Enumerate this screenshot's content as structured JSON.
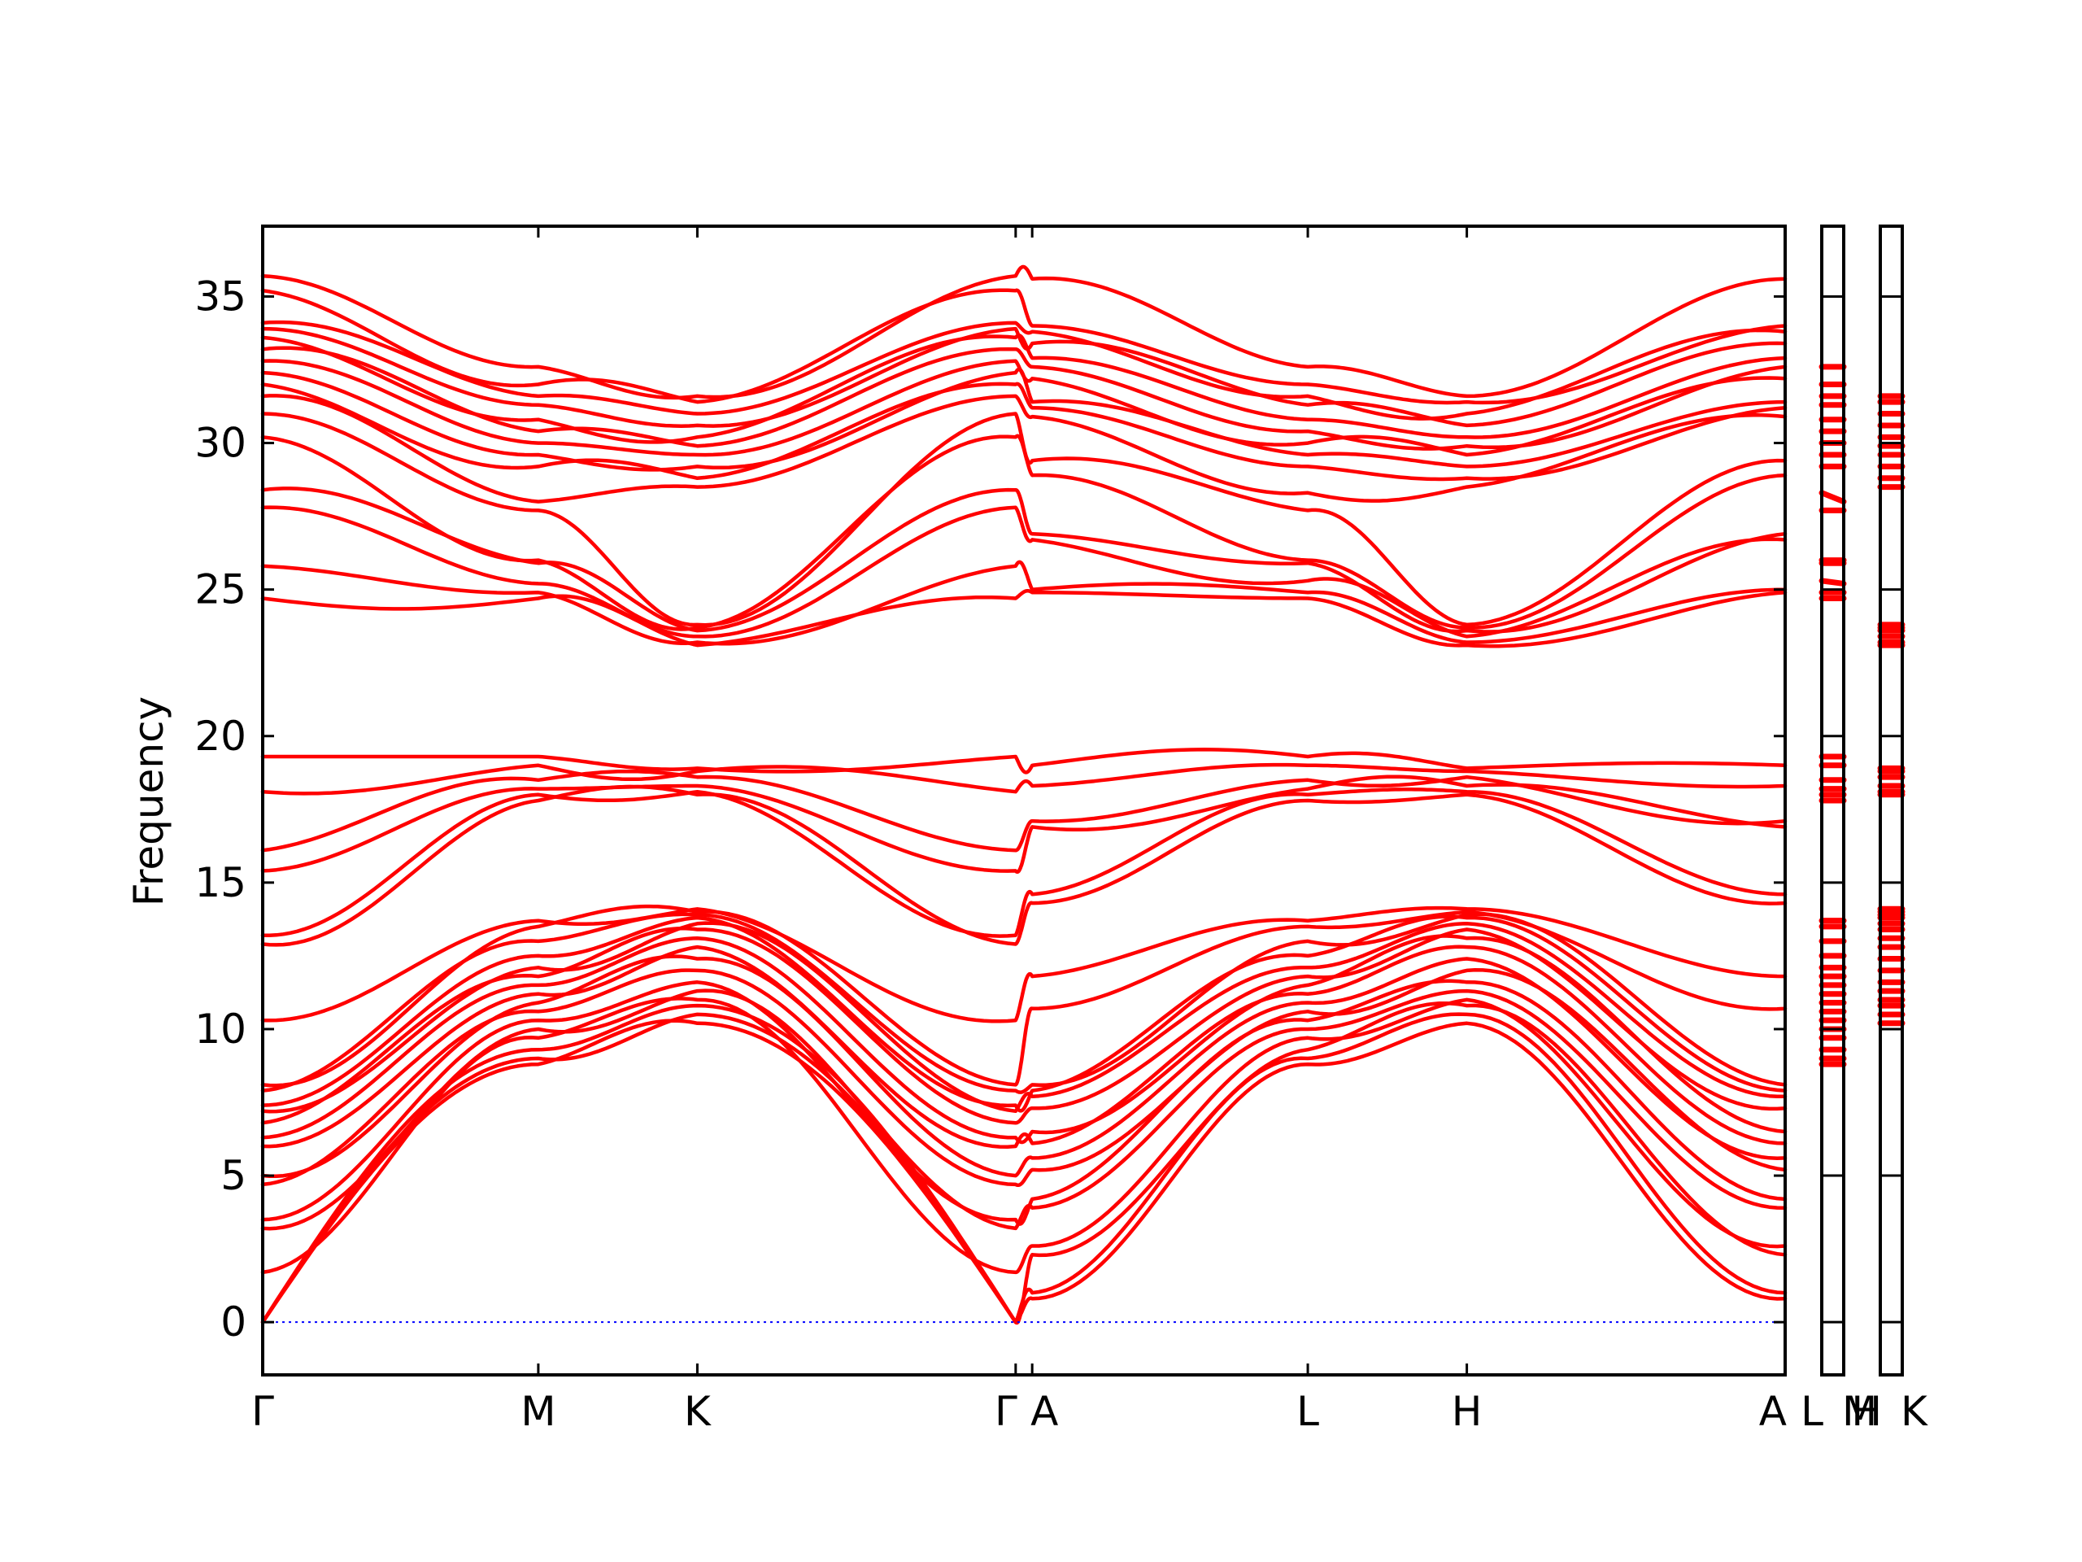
{
  "chart_data": {
    "type": "line",
    "title": "",
    "xlabel": "",
    "ylabel": "Frequency",
    "ylim": [
      -1.8,
      37.4
    ],
    "yticks": [
      0,
      5,
      10,
      15,
      20,
      25,
      30,
      35
    ],
    "grid": false,
    "legend": "none",
    "colors": {
      "bands": "#ff0000",
      "zero_line": "#0000ff",
      "axes": "#000000"
    },
    "path_segments": [
      {
        "from": "Γ",
        "to": "M",
        "length": 1.0
      },
      {
        "from": "M",
        "to": "K",
        "length": 0.577
      },
      {
        "from": "K",
        "to": "Γ",
        "length": 1.155
      },
      {
        "from": "Γ",
        "to": "A",
        "length": 0.06
      },
      {
        "from": "A",
        "to": "L",
        "length": 1.0
      },
      {
        "from": "L",
        "to": "H",
        "length": 0.577
      },
      {
        "from": "H",
        "to": "A",
        "length": 1.155
      },
      {
        "from": "L",
        "to": "M",
        "length": 0.06
      },
      {
        "from": "H",
        "to": "K",
        "length": 0.06
      }
    ],
    "x_tick_labels": [
      "Γ",
      "M",
      "K",
      "Γ",
      "A",
      "L",
      "H",
      "A",
      "L",
      "M",
      "H",
      "K"
    ],
    "high_point_freqs": {
      "Gamma": [
        24.7,
        25.8,
        27.8,
        28.4,
        30.2,
        31.0,
        31.6,
        32.0,
        32.4,
        32.8,
        33.2,
        33.6,
        33.9,
        34.1,
        35.2,
        35.7
      ],
      "M": [
        24.7,
        24.9,
        25.2,
        25.9,
        26.0,
        27.7,
        28.0,
        29.2,
        29.6,
        30.0,
        30.4,
        30.8,
        31.3,
        31.6,
        32.0,
        32.6
      ],
      "K": [
        23.1,
        23.2,
        23.4,
        23.6,
        23.7,
        23.8,
        28.5,
        28.8,
        29.2,
        29.6,
        29.9,
        30.2,
        30.6,
        31.0,
        31.4,
        31.6
      ],
      "A": [
        24.9,
        25.0,
        26.7,
        26.9,
        28.9,
        29.4,
        30.9,
        31.2,
        31.4,
        32.2,
        32.6,
        32.9,
        33.4,
        33.8,
        34.0,
        35.6
      ],
      "L": [
        24.7,
        24.9,
        25.3,
        25.9,
        26.0,
        27.7,
        28.3,
        29.2,
        29.6,
        30.0,
        30.4,
        30.8,
        31.3,
        31.6,
        32.0,
        32.6
      ],
      "H": [
        23.1,
        23.2,
        23.4,
        23.6,
        23.7,
        23.8,
        28.5,
        28.8,
        29.2,
        29.6,
        29.9,
        30.2,
        30.6,
        31.0,
        31.4,
        31.6
      ]
    },
    "mid_point_freqs": {
      "Gamma": [
        12.9,
        13.2,
        15.4,
        16.1,
        18.1,
        19.3
      ],
      "M": [
        17.8,
        18.0,
        18.2,
        18.5,
        19.0,
        19.3
      ],
      "K": [
        18.0,
        18.1,
        18.3,
        18.6,
        18.8,
        18.9
      ],
      "A": [
        14.3,
        14.6,
        16.9,
        17.1,
        18.3,
        19.0
      ],
      "L": [
        17.8,
        18.0,
        18.2,
        18.5,
        19.0,
        19.3
      ],
      "H": [
        18.0,
        18.1,
        18.3,
        18.6,
        18.8,
        18.9
      ]
    },
    "low_point_freqs": {
      "Gamma": [
        0.0,
        0.0,
        0.0,
        1.7,
        3.2,
        3.5,
        4.7,
        5.0,
        6.0,
        6.3,
        6.8,
        7.2,
        7.4,
        7.9,
        8.1,
        10.3
      ],
      "M": [
        8.8,
        9.0,
        9.3,
        9.7,
        10.0,
        10.3,
        10.6,
        10.9,
        11.2,
        11.5,
        11.8,
        12.1,
        12.5,
        13.0,
        13.5,
        13.7
      ],
      "K": [
        10.2,
        10.5,
        10.8,
        11.0,
        11.3,
        11.6,
        12.0,
        12.4,
        12.8,
        13.1,
        13.4,
        13.6,
        13.8,
        13.9,
        14.0,
        14.1
      ],
      "A": [
        0.8,
        1.0,
        2.3,
        2.6,
        3.9,
        4.2,
        5.2,
        5.6,
        6.1,
        6.5,
        7.3,
        7.7,
        7.9,
        8.1,
        10.7,
        11.8
      ],
      "L": [
        8.8,
        9.0,
        9.3,
        9.7,
        10.0,
        10.3,
        10.6,
        10.9,
        11.2,
        11.5,
        11.8,
        12.1,
        12.5,
        13.0,
        13.5,
        13.7
      ],
      "H": [
        10.2,
        10.5,
        10.8,
        11.0,
        11.3,
        11.6,
        12.0,
        12.4,
        12.8,
        13.1,
        13.4,
        13.6,
        13.8,
        13.9,
        14.0,
        14.1
      ]
    }
  }
}
